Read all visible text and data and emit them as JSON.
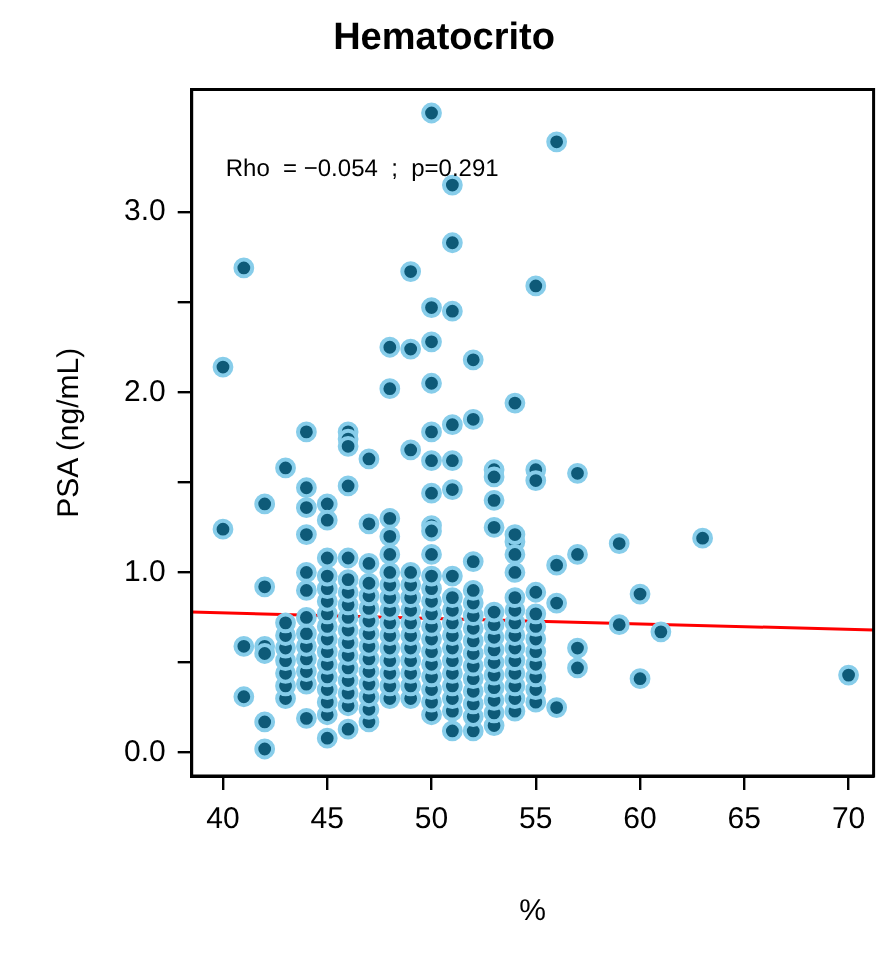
{
  "chart_data": {
    "type": "scatter",
    "title": "Hematocrito",
    "xlabel": "%",
    "ylabel": "PSA (ng/mL)",
    "annotations": [
      "Rho  = −0.054  ;  p=0.291"
    ],
    "xlim": [
      38.5,
      71.2
    ],
    "xticks": [
      40,
      45,
      50,
      55,
      60,
      65,
      70
    ],
    "ylim": [
      -0.13,
      3.68
    ],
    "yticks": [
      {
        "value": 0,
        "label": "0.0"
      },
      {
        "value": 0.5,
        "label": null
      },
      {
        "value": 1,
        "label": "1.0"
      },
      {
        "value": 1.5,
        "label": null
      },
      {
        "value": 2,
        "label": "2.0"
      },
      {
        "value": 2.5,
        "label": null
      },
      {
        "value": 3,
        "label": "3.0"
      }
    ],
    "grid": false,
    "legend": false,
    "series": [
      {
        "marker": "circle",
        "color": "#0e5a78",
        "x": [
          40,
          40,
          41,
          41,
          41,
          42,
          42,
          42,
          42,
          42,
          42,
          43,
          43,
          43,
          43,
          43,
          43,
          43,
          43,
          44,
          44,
          44,
          44,
          44,
          44,
          44,
          44,
          44,
          44,
          44,
          44,
          44,
          45,
          45,
          45,
          45,
          45,
          45,
          45,
          45,
          45,
          45,
          45,
          45,
          45,
          45,
          45,
          45,
          46,
          46,
          46,
          46,
          46,
          46,
          46,
          46,
          46,
          46,
          46,
          46,
          46,
          46,
          46,
          46,
          46,
          47,
          47,
          47,
          47,
          47,
          47,
          47,
          47,
          47,
          47,
          47,
          47,
          47,
          47,
          47,
          48,
          48,
          48,
          48,
          48,
          48,
          48,
          48,
          48,
          48,
          48,
          48,
          48,
          48,
          48,
          48,
          49,
          49,
          49,
          49,
          49,
          49,
          49,
          49,
          49,
          49,
          49,
          49,
          49,
          49,
          50,
          50,
          50,
          50,
          50,
          50,
          50,
          50,
          50,
          50,
          50,
          50,
          50,
          50,
          50,
          50,
          50,
          50,
          50,
          50,
          50,
          50,
          51,
          51,
          51,
          51,
          51,
          51,
          51,
          51,
          51,
          51,
          51,
          51,
          51,
          51,
          51,
          51,
          51,
          51,
          52,
          52,
          52,
          52,
          52,
          52,
          52,
          52,
          52,
          52,
          52,
          52,
          52,
          52,
          52,
          53,
          53,
          53,
          53,
          53,
          53,
          53,
          53,
          53,
          53,
          53,
          53,
          53,
          53,
          54,
          54,
          54,
          54,
          54,
          54,
          54,
          54,
          54,
          54,
          54,
          54,
          54,
          54,
          54,
          55,
          55,
          55,
          55,
          55,
          55,
          55,
          55,
          55,
          55,
          55,
          55,
          56,
          56,
          56,
          56,
          57,
          57,
          57,
          57,
          59,
          59,
          60,
          60,
          61,
          63,
          70
        ],
        "values": [
          2.14,
          1.24,
          2.69,
          0.59,
          0.31,
          1.38,
          0.92,
          0.59,
          0.55,
          0.17,
          0.02,
          1.58,
          0.3,
          0.37,
          0.44,
          0.51,
          0.58,
          0.65,
          0.72,
          1.78,
          1.47,
          1.36,
          1.21,
          0.19,
          0.38,
          0.45,
          0.52,
          0.59,
          0.66,
          0.75,
          0.9,
          1.0,
          1.38,
          1.29,
          0.08,
          0.21,
          0.28,
          0.35,
          0.42,
          0.49,
          0.56,
          0.63,
          0.7,
          0.77,
          0.84,
          0.91,
          0.98,
          1.08,
          1.78,
          1.74,
          1.7,
          1.48,
          0.13,
          0.26,
          0.33,
          0.4,
          0.47,
          0.54,
          0.61,
          0.68,
          0.75,
          0.82,
          0.89,
          0.96,
          1.08,
          1.63,
          1.27,
          0.17,
          0.24,
          0.31,
          0.38,
          0.45,
          0.52,
          0.59,
          0.66,
          0.73,
          0.8,
          0.87,
          0.94,
          1.05,
          2.25,
          2.02,
          1.3,
          0.3,
          0.37,
          0.44,
          0.51,
          0.58,
          0.65,
          0.72,
          0.79,
          0.86,
          0.93,
          1.0,
          1.1,
          1.2,
          2.67,
          2.24,
          1.68,
          0.3,
          0.37,
          0.44,
          0.51,
          0.58,
          0.65,
          0.72,
          0.79,
          0.86,
          0.93,
          1.0,
          3.55,
          2.47,
          2.28,
          2.05,
          1.78,
          1.62,
          1.44,
          1.26,
          0.21,
          0.28,
          0.35,
          0.42,
          0.49,
          0.56,
          0.63,
          0.7,
          0.77,
          0.84,
          0.91,
          0.98,
          1.1,
          1.23,
          3.15,
          2.83,
          2.45,
          1.82,
          1.62,
          1.46,
          0.12,
          0.23,
          0.3,
          0.37,
          0.44,
          0.51,
          0.58,
          0.65,
          0.72,
          0.79,
          0.86,
          0.98,
          2.18,
          1.85,
          0.12,
          0.2,
          0.27,
          0.34,
          0.41,
          0.48,
          0.55,
          0.62,
          0.69,
          0.76,
          0.83,
          0.9,
          1.06,
          1.57,
          1.53,
          1.4,
          1.25,
          0.15,
          0.22,
          0.29,
          0.36,
          0.43,
          0.5,
          0.57,
          0.64,
          0.71,
          0.78,
          1.94,
          1.17,
          0.23,
          0.3,
          0.37,
          0.44,
          0.51,
          0.58,
          0.65,
          0.72,
          0.79,
          0.86,
          1.0,
          1.1,
          1.21,
          2.59,
          1.57,
          1.51,
          0.28,
          0.35,
          0.42,
          0.49,
          0.56,
          0.63,
          0.7,
          0.77,
          0.89,
          3.39,
          1.04,
          0.83,
          0.25,
          1.55,
          1.1,
          0.58,
          0.47,
          1.16,
          0.71,
          0.88,
          0.41,
          0.67,
          1.19,
          0.43
        ]
      },
      {
        "type": "line",
        "marker": "none",
        "color": "#ff0000",
        "x": [
          38.5,
          71.2
        ],
        "values": [
          0.78,
          0.68
        ]
      }
    ]
  }
}
